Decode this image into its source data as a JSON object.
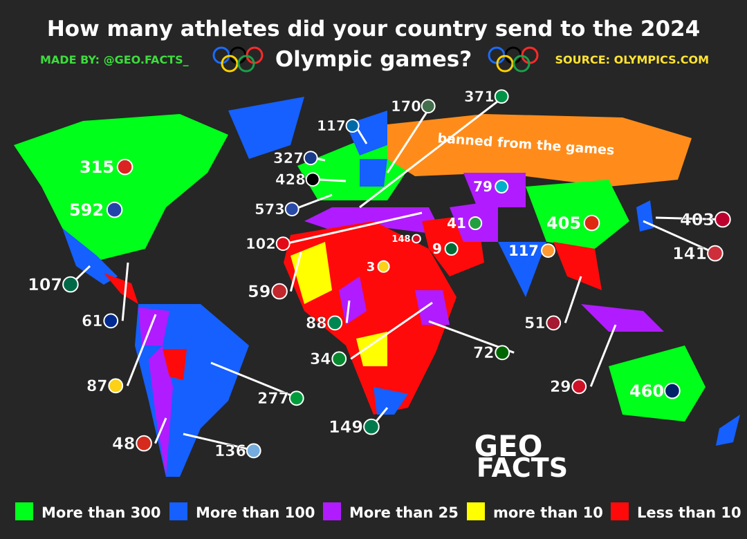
{
  "header": {
    "title_line1": "How many athletes did your country send to the 2024",
    "title_line2": "Olympic games?",
    "made_by": "MADE BY: @GEO.FACTS_",
    "source": "SOURCE: OLYMPICS.COM"
  },
  "map": {
    "banned_note": "banned from the games",
    "labels": [
      {
        "value": 315
      },
      {
        "value": 592
      },
      {
        "value": 327
      },
      {
        "value": 428
      },
      {
        "value": 573
      },
      {
        "value": 102
      },
      {
        "value": 107
      },
      {
        "value": 61
      },
      {
        "value": 59
      },
      {
        "value": 87
      },
      {
        "value": 48
      },
      {
        "value": 136
      },
      {
        "value": 277
      },
      {
        "value": 149
      },
      {
        "value": 88
      },
      {
        "value": 34
      },
      {
        "value": 72
      },
      {
        "value": 29
      },
      {
        "value": 51
      },
      {
        "value": 460
      },
      {
        "value": 141
      },
      {
        "value": 403
      },
      {
        "value": 117
      },
      {
        "value": 405
      },
      {
        "value": 41
      },
      {
        "value": 9
      },
      {
        "value": 3
      },
      {
        "value": 148
      },
      {
        "value": 79
      },
      {
        "value": 117
      },
      {
        "value": 170
      },
      {
        "value": 371
      }
    ]
  },
  "logo": {
    "line1": "GEO",
    "line2": "FACTS"
  },
  "legend": [
    {
      "label": "More than 300",
      "color": "#00ff1a"
    },
    {
      "label": "More than 100",
      "color": "#1560ff"
    },
    {
      "label": "More than 25",
      "color": "#b01cff"
    },
    {
      "label": "more than 10",
      "color": "#ffff00"
    },
    {
      "label": "Less than 10",
      "color": "#ff0a0a"
    }
  ]
}
